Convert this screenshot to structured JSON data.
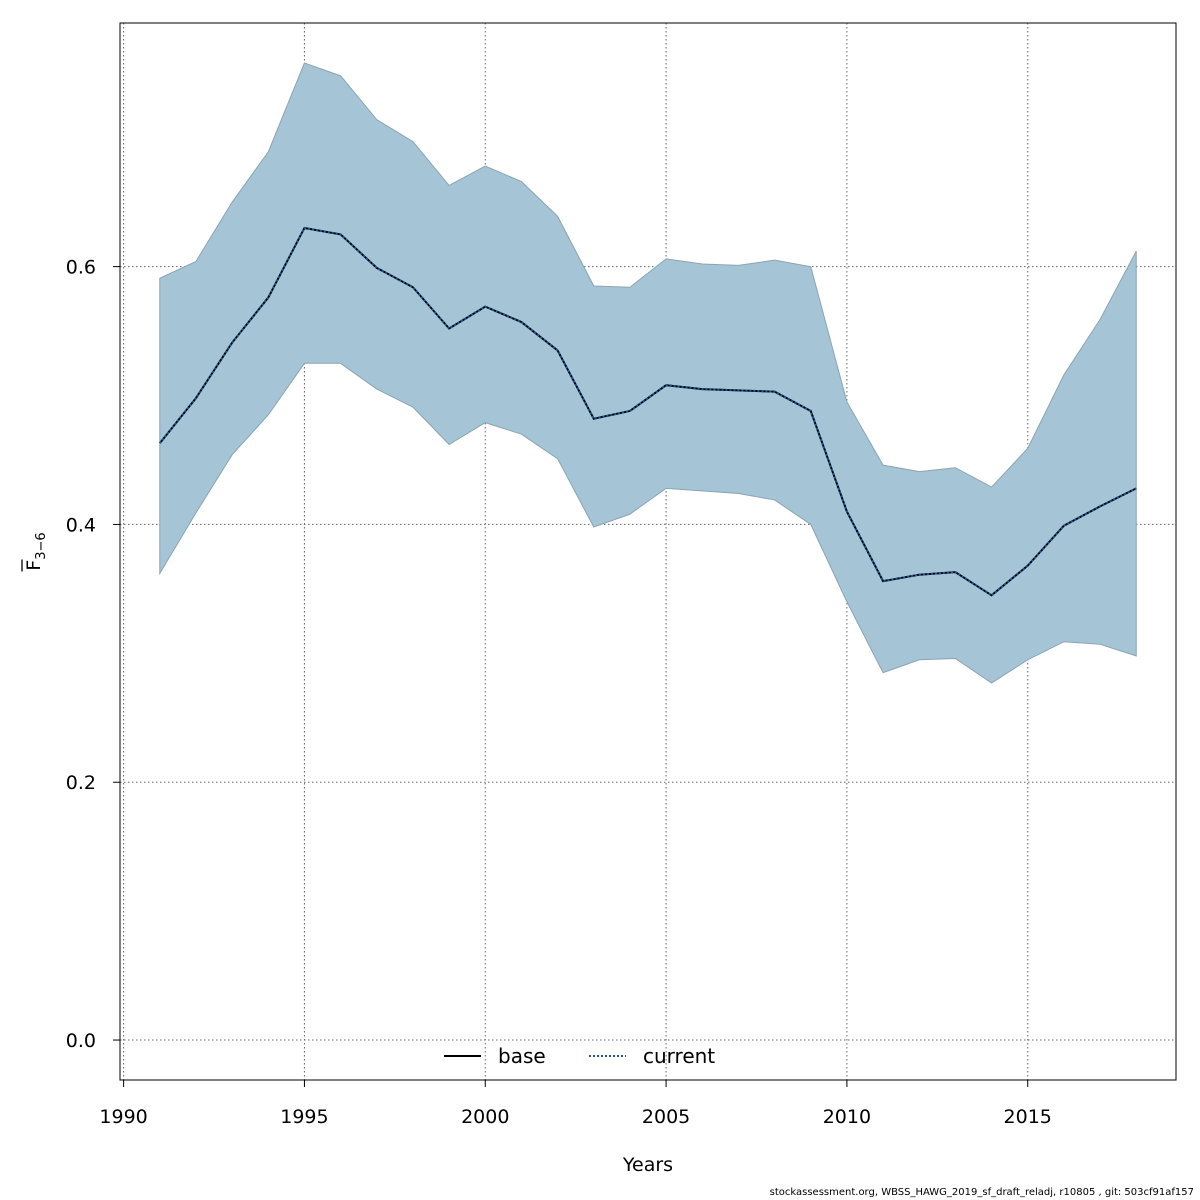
{
  "chart_data": {
    "type": "line",
    "xlabel": "Years",
    "ylabel_main": "F",
    "ylabel_sub": "3−6",
    "xlim": [
      1989.9,
      2019.1
    ],
    "ylim": [
      -0.031,
      0.789
    ],
    "x_ticks": [
      1990,
      1995,
      2000,
      2005,
      2010,
      2015
    ],
    "y_ticks": [
      0.0,
      0.2,
      0.4,
      0.6
    ],
    "y_tick_labels": [
      "0.0",
      "0.2",
      "0.4",
      "0.6"
    ],
    "grid": true,
    "legend_position": "bottom-center",
    "x": [
      1991,
      1992,
      1993,
      1994,
      1995,
      1996,
      1997,
      1998,
      1999,
      2000,
      2001,
      2002,
      2003,
      2004,
      2005,
      2006,
      2007,
      2008,
      2009,
      2010,
      2011,
      2012,
      2013,
      2014,
      2015,
      2016,
      2017,
      2018
    ],
    "band": {
      "color": "#a5c4d5",
      "upper": [
        0.591,
        0.604,
        0.65,
        0.689,
        0.758,
        0.748,
        0.714,
        0.697,
        0.663,
        0.678,
        0.666,
        0.639,
        0.585,
        0.584,
        0.606,
        0.602,
        0.601,
        0.605,
        0.6,
        0.495,
        0.446,
        0.441,
        0.444,
        0.429,
        0.459,
        0.516,
        0.559,
        0.612
      ],
      "lower": [
        0.362,
        0.409,
        0.454,
        0.485,
        0.525,
        0.525,
        0.505,
        0.491,
        0.462,
        0.479,
        0.47,
        0.451,
        0.398,
        0.408,
        0.428,
        0.426,
        0.424,
        0.419,
        0.4,
        0.34,
        0.285,
        0.295,
        0.296,
        0.277,
        0.295,
        0.309,
        0.307,
        0.298
      ]
    },
    "series": [
      {
        "name": "base",
        "color": "#000000",
        "style": "solid",
        "values": [
          0.463,
          0.498,
          0.541,
          0.576,
          0.63,
          0.625,
          0.599,
          0.584,
          0.552,
          0.569,
          0.557,
          0.535,
          0.482,
          0.488,
          0.508,
          0.505,
          0.504,
          0.503,
          0.488,
          0.41,
          0.356,
          0.361,
          0.363,
          0.345,
          0.368,
          0.399,
          0.414,
          0.428
        ]
      },
      {
        "name": "current",
        "color": "#1a5a99",
        "style": "dotted",
        "values": [
          0.463,
          0.498,
          0.541,
          0.576,
          0.63,
          0.625,
          0.599,
          0.584,
          0.552,
          0.569,
          0.557,
          0.535,
          0.482,
          0.488,
          0.508,
          0.505,
          0.504,
          0.503,
          0.488,
          0.41,
          0.356,
          0.361,
          0.363,
          0.345,
          0.368,
          0.399,
          0.414,
          0.428
        ]
      }
    ]
  },
  "footer": "stockassessment.org, WBSS_HAWG_2019_sf_draft_reladj, r10805 , git: 503cf91af157"
}
